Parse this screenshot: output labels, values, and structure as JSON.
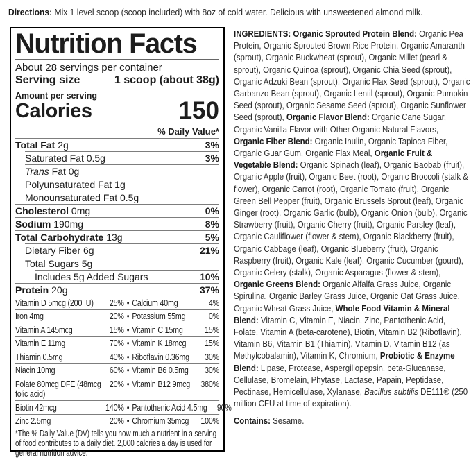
{
  "colors": {
    "text": "#1d1d1d",
    "rule": "#000000",
    "hairline": "#7d7d7d"
  },
  "directions": {
    "segments": [
      {
        "t": "Directions: ",
        "b": true
      },
      {
        "t": "Mix 1 level scoop (scoop included) with 8oz of cold water. Delicious with unsweetened almond milk."
      }
    ]
  },
  "nutrition": {
    "title": "Nutrition Facts",
    "servings_per_container": "About 28 servings per container",
    "serving_size_label": "Serving size",
    "serving_size_value": "1 scoop (about 38g)",
    "amount_per_serving": "Amount per serving",
    "calories_label": "Calories",
    "calories_value": "150",
    "daily_value_header": "% Daily Value*",
    "rows": [
      {
        "indent": 0,
        "segments": [
          {
            "t": "Total Fat ",
            "b": true
          },
          {
            "t": "2g"
          }
        ],
        "dv": "3%"
      },
      {
        "indent": 1,
        "segments": [
          {
            "t": "Saturated Fat 0.5g"
          }
        ],
        "dv": "3%"
      },
      {
        "indent": 1,
        "segments": [
          {
            "t": "Trans",
            "i": true
          },
          {
            "t": " Fat 0g"
          }
        ],
        "dv": ""
      },
      {
        "indent": 1,
        "segments": [
          {
            "t": "Polyunsaturated Fat 1g"
          }
        ],
        "dv": ""
      },
      {
        "indent": 1,
        "segments": [
          {
            "t": "Monounsaturated Fat 0.5g"
          }
        ],
        "dv": ""
      },
      {
        "indent": 0,
        "segments": [
          {
            "t": "Cholesterol ",
            "b": true
          },
          {
            "t": "0mg"
          }
        ],
        "dv": "0%"
      },
      {
        "indent": 0,
        "segments": [
          {
            "t": "Sodium ",
            "b": true
          },
          {
            "t": "190mg"
          }
        ],
        "dv": "8%"
      },
      {
        "indent": 0,
        "segments": [
          {
            "t": "Total Carbohydrate ",
            "b": true
          },
          {
            "t": "13g"
          }
        ],
        "dv": "5%"
      },
      {
        "indent": 1,
        "segments": [
          {
            "t": "Dietary Fiber 6g"
          }
        ],
        "dv": "21%"
      },
      {
        "indent": 1,
        "segments": [
          {
            "t": "Total Sugars 5g"
          }
        ],
        "dv": ""
      },
      {
        "indent": 2,
        "segments": [
          {
            "t": "Includes 5g Added Sugars"
          }
        ],
        "dv": "10%"
      },
      {
        "indent": 0,
        "segments": [
          {
            "t": "Protein ",
            "b": true
          },
          {
            "t": "20g"
          }
        ],
        "dv": "37%"
      }
    ],
    "vitamins": [
      {
        "left": "Vitamin D 5mcg (200 IU)",
        "left_dv": "25%",
        "right": "Calcium 40mg",
        "right_dv": "4%"
      },
      {
        "left": "Iron 4mg",
        "left_dv": "20%",
        "right": "Potassium 55mg",
        "right_dv": "0%"
      },
      {
        "left": "Vitamin A 145mcg",
        "left_dv": "15%",
        "right": "Vitamin C 15mg",
        "right_dv": "15%"
      },
      {
        "left": "Vitamin E 11mg",
        "left_dv": "70%",
        "right": "Vitamin K 18mcg",
        "right_dv": "15%"
      },
      {
        "left": "Thiamin 0.5mg",
        "left_dv": "40%",
        "right": "Riboflavin 0.36mg",
        "right_dv": "30%"
      },
      {
        "left": "Niacin 10mg",
        "left_dv": "60%",
        "right": "Vitamin B6 0.5mg",
        "right_dv": "30%"
      },
      {
        "left": "Folate 80mcg DFE (48mcg folic acid)",
        "left_dv": "20%",
        "right": "Vitamin B12 9mcg",
        "right_dv": "380%"
      },
      {
        "left": "Biotin 42mcg",
        "left_dv": "140%",
        "right": "Pantothenic Acid 4.5mg",
        "right_dv": "90%"
      },
      {
        "left": "Zinc 2.5mg",
        "left_dv": "20%",
        "right": "Chromium 35mcg",
        "right_dv": "100%"
      }
    ],
    "footnote": "*The % Daily Value (DV) tells you how much a nutrient in a serving of food contributes to a daily diet. 2,000 calories a day is used for general nutrition advice."
  },
  "ingredients": {
    "segments": [
      {
        "t": "INGREDIENTS: Organic Sprouted Protein Blend: ",
        "b": true
      },
      {
        "t": "Organic Pea Protein, Organic Sprouted Brown Rice Protein, Organic Amaranth (sprout), Organic Buckwheat (sprout), Organic Millet (pearl & sprout), Organic Quinoa (sprout), Organic Chia Seed (sprout), Organic Adzuki Bean (sprout), Organic Flax Seed (sprout), Organic Garbanzo Bean (sprout), Organic Lentil (sprout), Organic Pumpkin Seed (sprout), Organic Sesame Seed (sprout), Organic Sunflower Seed (sprout), "
      },
      {
        "t": "Organic Flavor Blend: ",
        "b": true
      },
      {
        "t": "Organic Cane Sugar, Organic Vanilla Flavor with Other Organic Natural Flavors, "
      },
      {
        "t": "Organic Fiber Blend: ",
        "b": true
      },
      {
        "t": "Organic Inulin, Organic Tapioca Fiber, Organic Guar Gum, Organic Flax Meal, "
      },
      {
        "t": "Organic Fruit & Vegetable Blend: ",
        "b": true
      },
      {
        "t": "Organic Spinach (leaf), Organic Baobab (fruit), Organic Apple (fruit), Organic Beet (root), Organic Broccoli (stalk & flower), Organic Carrot (root), Organic Tomato (fruit), Organic Green Bell Pepper (fruit), Organic Brussels Sprout (leaf), Organic Ginger (root), Organic Garlic (bulb), Organic Onion (bulb), Organic Strawberry (fruit), Organic Cherry (fruit), Organic Parsley (leaf), Organic Cauliflower (flower & stem), Organic Blackberry (fruit), Organic Cabbage (leaf), Organic Blueberry (fruit), Organic Raspberry (fruit), Organic Kale (leaf), Organic Cucumber (gourd), Organic Celery (stalk), Organic Asparagus (flower & stem), "
      },
      {
        "t": "Organic Greens Blend: ",
        "b": true
      },
      {
        "t": "Organic Alfalfa Grass Juice, Organic Spirulina, Organic Barley Grass Juice, Organic Oat Grass Juice, Organic Wheat Grass Juice, "
      },
      {
        "t": "Whole Food Vitamin & Mineral Blend: ",
        "b": true
      },
      {
        "t": "Vitamin C, Vitamin E, Niacin, Zinc, Pantothenic Acid, Folate, Vitamin A (beta-carotene), Biotin, Vitamin B2 (Riboflavin), Vitamin B6, Vitamin B1 (Thiamin), Vitamin D, Vitamin B12 (as Methylcobalamin), Vitamin K, Chromium, "
      },
      {
        "t": "Probiotic & Enzyme Blend: ",
        "b": true
      },
      {
        "t": "Lipase, Protease, Aspergillopepsin, beta-Glucanase, Cellulase, Bromelain, Phytase, Lactase, Papain, Peptidase, Pectinase, Hemicellulase, Xylanase, "
      },
      {
        "t": "Bacillus subtilis",
        "i": true
      },
      {
        "t": " DE111® (250 million CFU at time of expiration)."
      }
    ]
  },
  "contains": {
    "segments": [
      {
        "t": "Contains: ",
        "b": true
      },
      {
        "t": "Sesame."
      }
    ]
  }
}
